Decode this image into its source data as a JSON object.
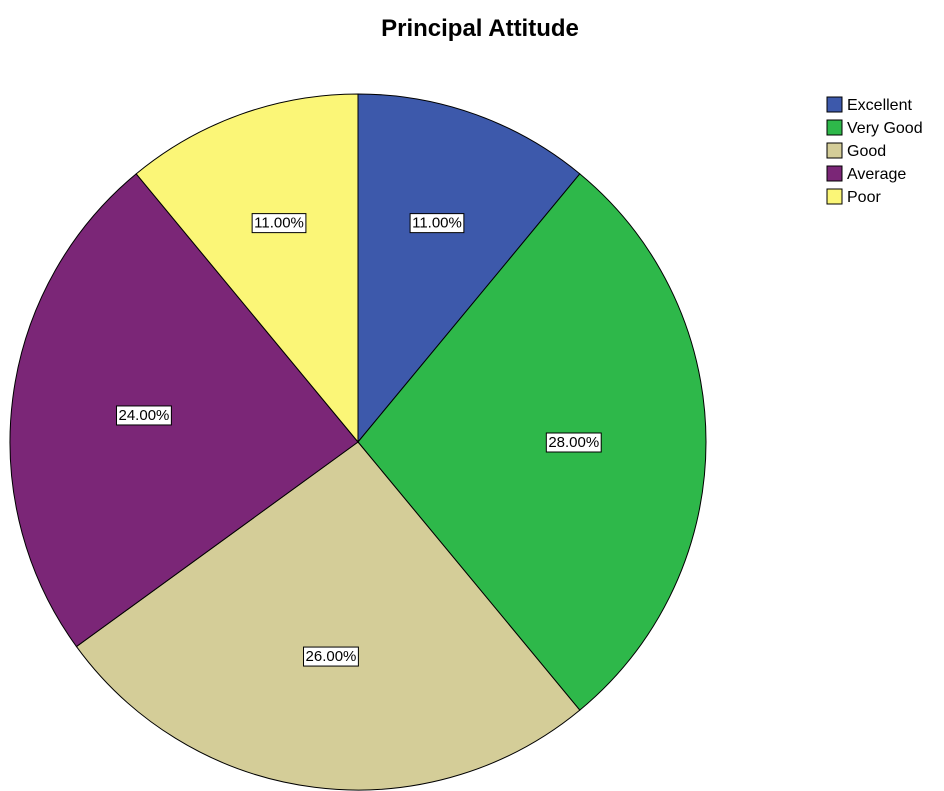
{
  "chart_data": {
    "type": "pie",
    "title": "Principal Attitude",
    "categories": [
      "Excellent",
      "Very Good",
      "Good",
      "Average",
      "Poor"
    ],
    "values": [
      11.0,
      28.0,
      26.0,
      24.0,
      11.0
    ],
    "value_labels": [
      "11.00%",
      "28.00%",
      "26.00%",
      "24.00%",
      "11.00%"
    ],
    "colors": [
      "#3d59ab",
      "#2eb84a",
      "#d4cd98",
      "#7b2677",
      "#fbf677"
    ],
    "start_angle": "12 o'clock",
    "direction": "clockwise",
    "legend": "top-right"
  }
}
